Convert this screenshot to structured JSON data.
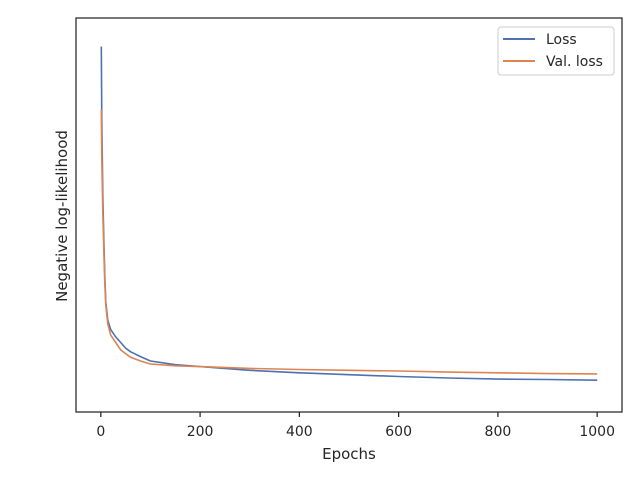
{
  "chart_data": {
    "type": "line",
    "xlabel": "Epochs",
    "ylabel": "Negative log-likelihood",
    "xlim": [
      -50,
      1050
    ],
    "ylim": [
      0,
      1
    ],
    "x_ticks": [
      0,
      200,
      400,
      600,
      800,
      1000
    ],
    "y_ticks_shown": false,
    "grid": false,
    "legend_position": "top-right",
    "series": [
      {
        "name": "Loss",
        "color": "#4c72b0",
        "x": [
          1,
          2,
          4,
          6,
          8,
          10,
          14,
          20,
          30,
          40,
          50,
          60,
          80,
          100,
          150,
          200,
          300,
          400,
          500,
          600,
          700,
          800,
          900,
          1000
        ],
        "values": [
          0.95,
          0.75,
          0.55,
          0.43,
          0.33,
          0.26,
          0.21,
          0.185,
          0.165,
          0.15,
          0.135,
          0.125,
          0.112,
          0.1,
          0.09,
          0.085,
          0.075,
          0.068,
          0.063,
          0.058,
          0.054,
          0.051,
          0.05,
          0.048
        ]
      },
      {
        "name": "Val. loss",
        "color": "#dd8452",
        "x": [
          1,
          2,
          4,
          6,
          8,
          10,
          14,
          20,
          30,
          40,
          50,
          60,
          80,
          100,
          150,
          200,
          300,
          400,
          500,
          600,
          700,
          800,
          900,
          1000
        ],
        "values": [
          0.78,
          0.65,
          0.5,
          0.4,
          0.31,
          0.25,
          0.2,
          0.17,
          0.15,
          0.13,
          0.12,
          0.11,
          0.1,
          0.092,
          0.087,
          0.085,
          0.08,
          0.077,
          0.075,
          0.073,
          0.07,
          0.068,
          0.066,
          0.065
        ]
      }
    ]
  }
}
